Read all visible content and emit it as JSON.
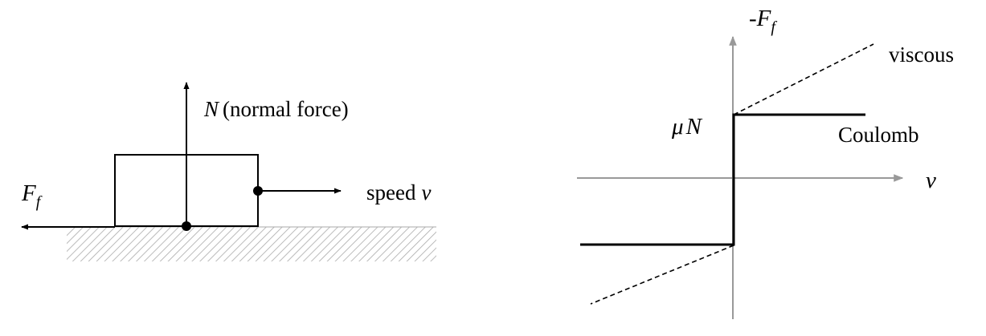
{
  "left_diagram": {
    "normal_force": {
      "symbol": "N",
      "label": "(normal force)"
    },
    "speed": {
      "label": "speed",
      "symbol": "v"
    },
    "friction_force": {
      "symbol": "F",
      "subscript": "f"
    }
  },
  "right_diagram": {
    "y_axis": {
      "prefix": "-",
      "symbol": "F",
      "subscript": "f"
    },
    "x_axis": {
      "symbol": "v"
    },
    "mu_n": {
      "mu": "μ",
      "symbol": "N"
    },
    "viscous_label": "viscous",
    "coulomb_label": "Coulomb"
  },
  "colors": {
    "axis": "#999999",
    "ink": "#000000",
    "ground_hatch": "#aaaaaa"
  }
}
